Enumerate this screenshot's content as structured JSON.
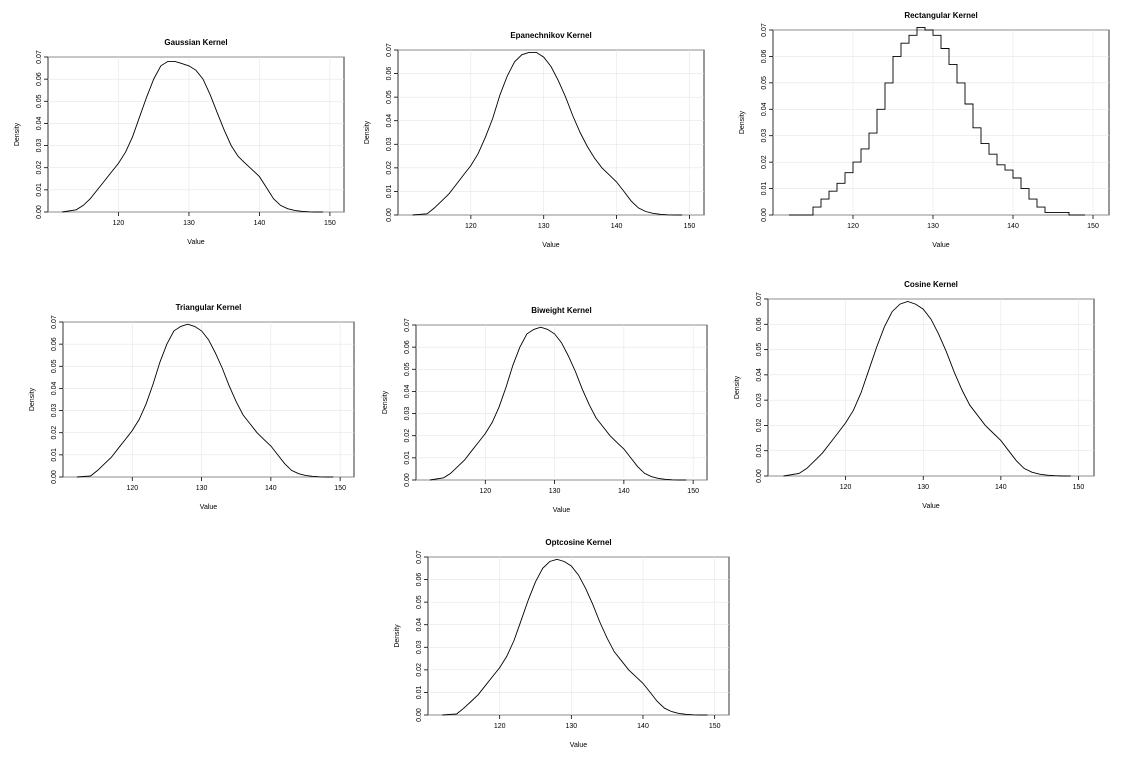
{
  "chart_data": [
    {
      "type": "line",
      "title": "Gaussian Kernel",
      "xlabel": "Value",
      "ylabel": "Density",
      "xlim": [
        110,
        152
      ],
      "ylim": [
        0,
        0.07
      ],
      "xticks": [
        120,
        130,
        140,
        150
      ],
      "yticks": [
        0.0,
        0.01,
        0.02,
        0.03,
        0.04,
        0.05,
        0.06,
        0.07
      ],
      "grid": true,
      "x": [
        112,
        114,
        115,
        116,
        117,
        118,
        119,
        120,
        121,
        122,
        123,
        124,
        125,
        126,
        127,
        128,
        129,
        130,
        131,
        132,
        133,
        134,
        135,
        136,
        137,
        138,
        139,
        140,
        141,
        142,
        143,
        144,
        145,
        146,
        147,
        148,
        149
      ],
      "values": [
        0.0,
        0.001,
        0.003,
        0.006,
        0.01,
        0.014,
        0.018,
        0.022,
        0.027,
        0.034,
        0.043,
        0.052,
        0.06,
        0.066,
        0.068,
        0.068,
        0.067,
        0.066,
        0.064,
        0.06,
        0.053,
        0.045,
        0.037,
        0.03,
        0.025,
        0.022,
        0.019,
        0.016,
        0.011,
        0.006,
        0.003,
        0.0015,
        0.0007,
        0.0003,
        0.0001,
        0.0,
        0.0
      ]
    },
    {
      "type": "line",
      "title": "Epanechnikov Kernel",
      "xlabel": "Value",
      "ylabel": "Density",
      "xlim": [
        110,
        152
      ],
      "ylim": [
        0,
        0.07
      ],
      "xticks": [
        120,
        130,
        140,
        150
      ],
      "yticks": [
        0.0,
        0.01,
        0.02,
        0.03,
        0.04,
        0.05,
        0.06,
        0.07
      ],
      "grid": true,
      "x": [
        112,
        114,
        115,
        116,
        117,
        118,
        119,
        120,
        121,
        122,
        123,
        124,
        125,
        126,
        127,
        128,
        129,
        130,
        131,
        132,
        133,
        134,
        135,
        136,
        137,
        138,
        139,
        140,
        141,
        142,
        143,
        144,
        145,
        146,
        147,
        148,
        149
      ],
      "values": [
        0.0,
        0.0005,
        0.003,
        0.006,
        0.009,
        0.013,
        0.017,
        0.021,
        0.026,
        0.033,
        0.041,
        0.051,
        0.059,
        0.065,
        0.068,
        0.069,
        0.069,
        0.067,
        0.063,
        0.057,
        0.05,
        0.042,
        0.035,
        0.029,
        0.024,
        0.02,
        0.017,
        0.014,
        0.01,
        0.006,
        0.003,
        0.0015,
        0.0007,
        0.0003,
        0.0001,
        0.0,
        0.0
      ]
    },
    {
      "type": "line",
      "title": "Rectangular Kernel",
      "xlabel": "Value",
      "ylabel": "Density",
      "xlim": [
        110,
        152
      ],
      "ylim": [
        0,
        0.07
      ],
      "xticks": [
        120,
        130,
        140,
        150
      ],
      "yticks": [
        0.0,
        0.01,
        0.02,
        0.03,
        0.04,
        0.05,
        0.06,
        0.07
      ],
      "grid": true,
      "x": [
        112,
        114,
        115,
        116,
        117,
        118,
        119,
        120,
        121,
        122,
        123,
        124,
        125,
        126,
        127,
        128,
        129,
        130,
        131,
        132,
        133,
        134,
        135,
        136,
        137,
        138,
        139,
        140,
        141,
        142,
        143,
        144,
        145,
        146,
        147,
        148,
        149
      ],
      "values": [
        0.0,
        0.0,
        0.003,
        0.006,
        0.009,
        0.012,
        0.016,
        0.02,
        0.025,
        0.031,
        0.04,
        0.05,
        0.06,
        0.065,
        0.068,
        0.071,
        0.07,
        0.068,
        0.063,
        0.057,
        0.05,
        0.042,
        0.033,
        0.027,
        0.023,
        0.019,
        0.017,
        0.014,
        0.01,
        0.006,
        0.003,
        0.001,
        0.001,
        0.001,
        0.0,
        0.0,
        0.0
      ]
    },
    {
      "type": "line",
      "title": "Triangular Kernel",
      "xlabel": "Value",
      "ylabel": "Density",
      "xlim": [
        110,
        152
      ],
      "ylim": [
        0,
        0.07
      ],
      "xticks": [
        120,
        130,
        140,
        150
      ],
      "yticks": [
        0.0,
        0.01,
        0.02,
        0.03,
        0.04,
        0.05,
        0.06,
        0.07
      ],
      "grid": true,
      "x": [
        112,
        114,
        115,
        116,
        117,
        118,
        119,
        120,
        121,
        122,
        123,
        124,
        125,
        126,
        127,
        128,
        129,
        130,
        131,
        132,
        133,
        134,
        135,
        136,
        137,
        138,
        139,
        140,
        141,
        142,
        143,
        144,
        145,
        146,
        147,
        148,
        149
      ],
      "values": [
        0.0,
        0.0005,
        0.003,
        0.006,
        0.009,
        0.013,
        0.017,
        0.021,
        0.026,
        0.033,
        0.042,
        0.052,
        0.06,
        0.066,
        0.068,
        0.069,
        0.068,
        0.066,
        0.062,
        0.056,
        0.049,
        0.041,
        0.034,
        0.028,
        0.024,
        0.02,
        0.017,
        0.014,
        0.01,
        0.006,
        0.003,
        0.0015,
        0.0007,
        0.0003,
        0.0001,
        0.0,
        0.0
      ]
    },
    {
      "type": "line",
      "title": "Biweight Kernel",
      "xlabel": "Value",
      "ylabel": "Density",
      "xlim": [
        110,
        152
      ],
      "ylim": [
        0,
        0.07
      ],
      "xticks": [
        120,
        130,
        140,
        150
      ],
      "yticks": [
        0.0,
        0.01,
        0.02,
        0.03,
        0.04,
        0.05,
        0.06,
        0.07
      ],
      "grid": true,
      "x": [
        112,
        114,
        115,
        116,
        117,
        118,
        119,
        120,
        121,
        122,
        123,
        124,
        125,
        126,
        127,
        128,
        129,
        130,
        131,
        132,
        133,
        134,
        135,
        136,
        137,
        138,
        139,
        140,
        141,
        142,
        143,
        144,
        145,
        146,
        147,
        148,
        149
      ],
      "values": [
        0.0,
        0.001,
        0.003,
        0.006,
        0.009,
        0.013,
        0.017,
        0.021,
        0.026,
        0.033,
        0.042,
        0.052,
        0.06,
        0.066,
        0.068,
        0.069,
        0.068,
        0.066,
        0.062,
        0.056,
        0.049,
        0.041,
        0.034,
        0.028,
        0.024,
        0.02,
        0.017,
        0.014,
        0.01,
        0.006,
        0.003,
        0.0015,
        0.0007,
        0.0003,
        0.0001,
        0.0,
        0.0
      ]
    },
    {
      "type": "line",
      "title": "Cosine Kernel",
      "xlabel": "Value",
      "ylabel": "Density",
      "xlim": [
        110,
        152
      ],
      "ylim": [
        0,
        0.07
      ],
      "xticks": [
        120,
        130,
        140,
        150
      ],
      "yticks": [
        0.0,
        0.01,
        0.02,
        0.03,
        0.04,
        0.05,
        0.06,
        0.07
      ],
      "grid": true,
      "x": [
        112,
        114,
        115,
        116,
        117,
        118,
        119,
        120,
        121,
        122,
        123,
        124,
        125,
        126,
        127,
        128,
        129,
        130,
        131,
        132,
        133,
        134,
        135,
        136,
        137,
        138,
        139,
        140,
        141,
        142,
        143,
        144,
        145,
        146,
        147,
        148,
        149
      ],
      "values": [
        0.0,
        0.001,
        0.003,
        0.006,
        0.009,
        0.013,
        0.017,
        0.021,
        0.026,
        0.033,
        0.042,
        0.051,
        0.059,
        0.065,
        0.068,
        0.069,
        0.068,
        0.066,
        0.062,
        0.056,
        0.049,
        0.041,
        0.034,
        0.028,
        0.024,
        0.02,
        0.017,
        0.014,
        0.01,
        0.006,
        0.003,
        0.0015,
        0.0007,
        0.0003,
        0.0001,
        0.0,
        0.0
      ]
    },
    {
      "type": "line",
      "title": "Optcosine Kernel",
      "xlabel": "Value",
      "ylabel": "Density",
      "xlim": [
        110,
        152
      ],
      "ylim": [
        0,
        0.07
      ],
      "xticks": [
        120,
        130,
        140,
        150
      ],
      "yticks": [
        0.0,
        0.01,
        0.02,
        0.03,
        0.04,
        0.05,
        0.06,
        0.07
      ],
      "grid": true,
      "x": [
        112,
        114,
        115,
        116,
        117,
        118,
        119,
        120,
        121,
        122,
        123,
        124,
        125,
        126,
        127,
        128,
        129,
        130,
        131,
        132,
        133,
        134,
        135,
        136,
        137,
        138,
        139,
        140,
        141,
        142,
        143,
        144,
        145,
        146,
        147,
        148,
        149
      ],
      "values": [
        0.0,
        0.0005,
        0.003,
        0.006,
        0.009,
        0.013,
        0.017,
        0.021,
        0.026,
        0.033,
        0.042,
        0.051,
        0.059,
        0.065,
        0.068,
        0.069,
        0.068,
        0.066,
        0.062,
        0.056,
        0.049,
        0.041,
        0.034,
        0.028,
        0.024,
        0.02,
        0.017,
        0.014,
        0.01,
        0.006,
        0.003,
        0.0015,
        0.0007,
        0.0003,
        0.0001,
        0.0,
        0.0
      ]
    }
  ]
}
